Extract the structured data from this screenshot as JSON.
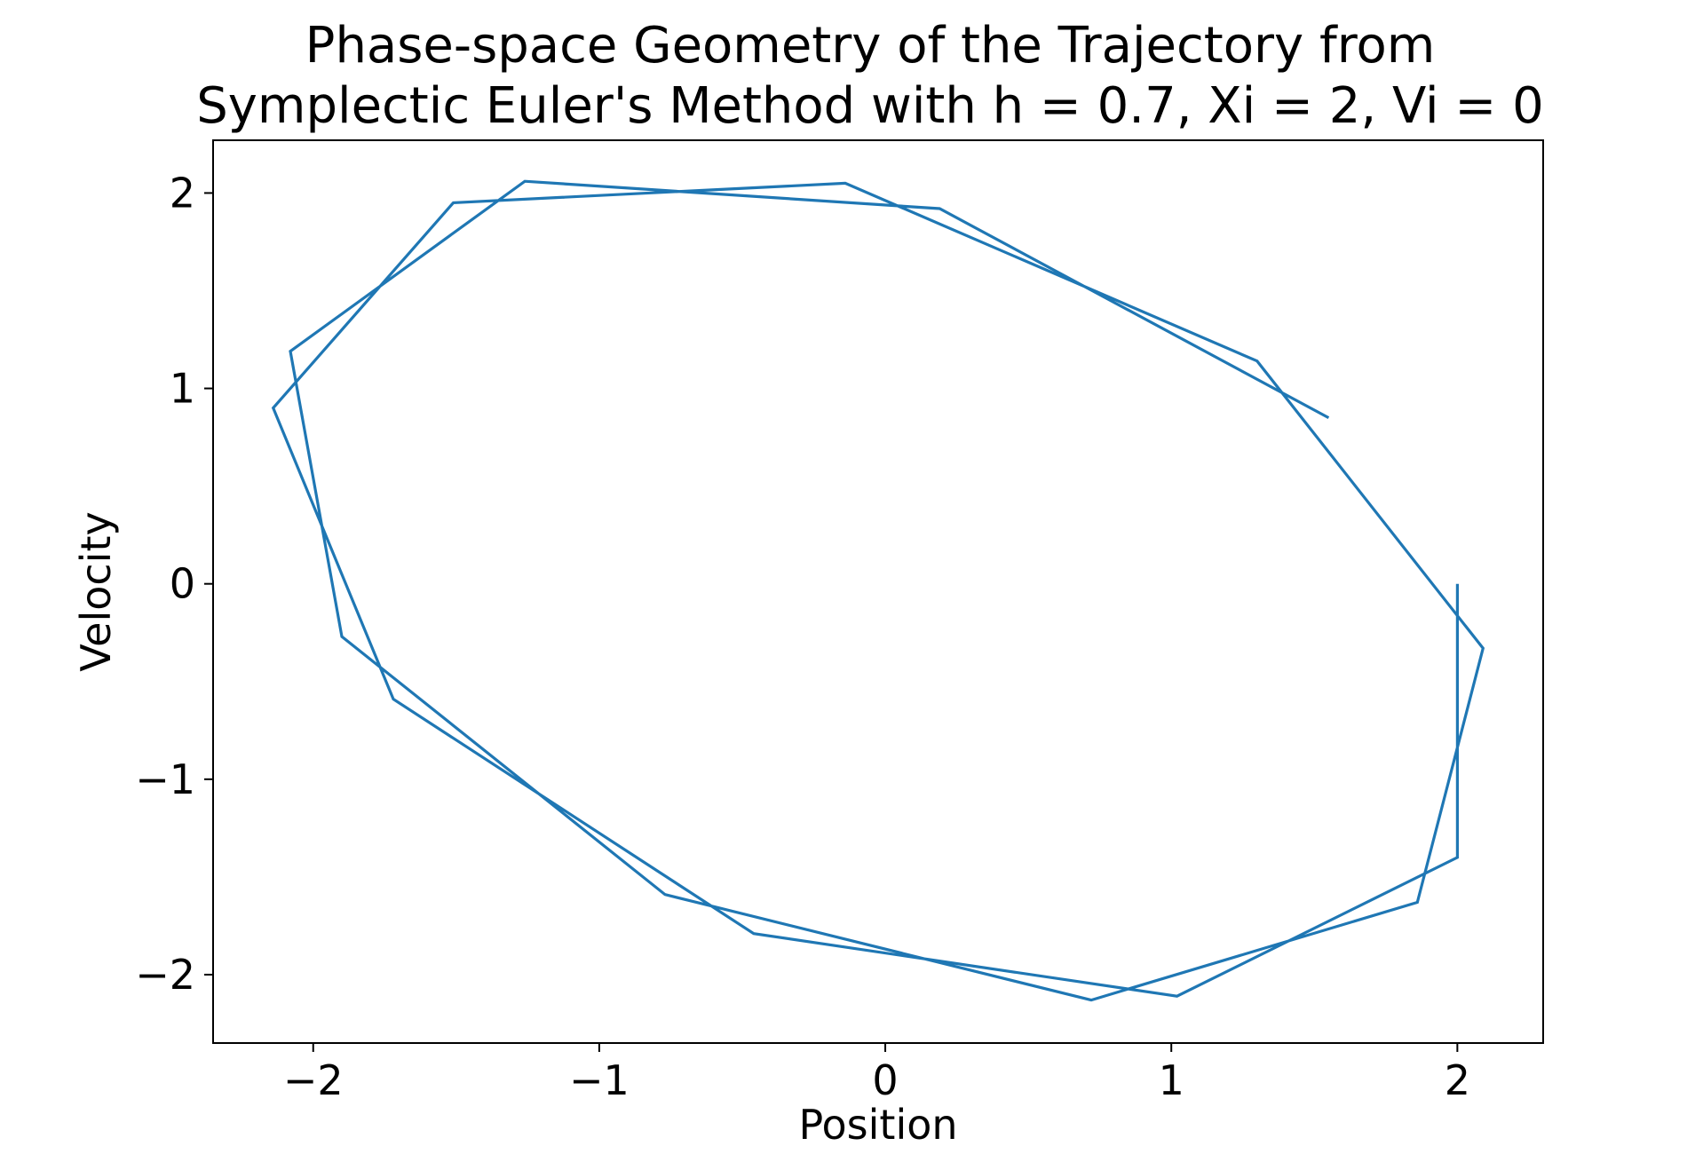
{
  "chart_data": {
    "type": "line",
    "title": "Phase-space Geometry of the Trajectory from\nSymplectic Euler's Method with h = 0.7, Xi = 2, Vi = 0",
    "title_lines": [
      "Phase-space Geometry of the Trajectory from",
      "Symplectic Euler's Method with h = 0.7, Xi = 2, Vi = 0"
    ],
    "xlabel": "Position",
    "ylabel": "Velocity",
    "xlim": [
      -2.35,
      2.3
    ],
    "ylim": [
      -2.35,
      2.27
    ],
    "xticks": [
      -2,
      -1,
      0,
      1,
      2
    ],
    "yticks": [
      -2,
      -1,
      0,
      1,
      2
    ],
    "xtick_labels": [
      "−2",
      "−1",
      "0",
      "1",
      "2"
    ],
    "ytick_labels": [
      "−2",
      "−1",
      "0",
      "1",
      "2"
    ],
    "grid": false,
    "legend": "none",
    "series_color": "#1f77b4",
    "series": [
      {
        "x": [
          2.0,
          2.0,
          1.02,
          -0.46,
          -1.72,
          -2.14,
          -1.51,
          -0.14,
          1.3,
          2.09,
          1.86,
          0.72,
          -0.77,
          -1.9,
          -2.08,
          -1.26,
          0.19,
          1.55
        ],
        "y": [
          0.0,
          -1.4,
          -2.11,
          -1.79,
          -0.59,
          0.9,
          1.95,
          2.05,
          1.14,
          -0.33,
          -1.63,
          -2.13,
          -1.59,
          -0.27,
          1.19,
          2.06,
          1.92,
          0.85
        ]
      }
    ]
  }
}
